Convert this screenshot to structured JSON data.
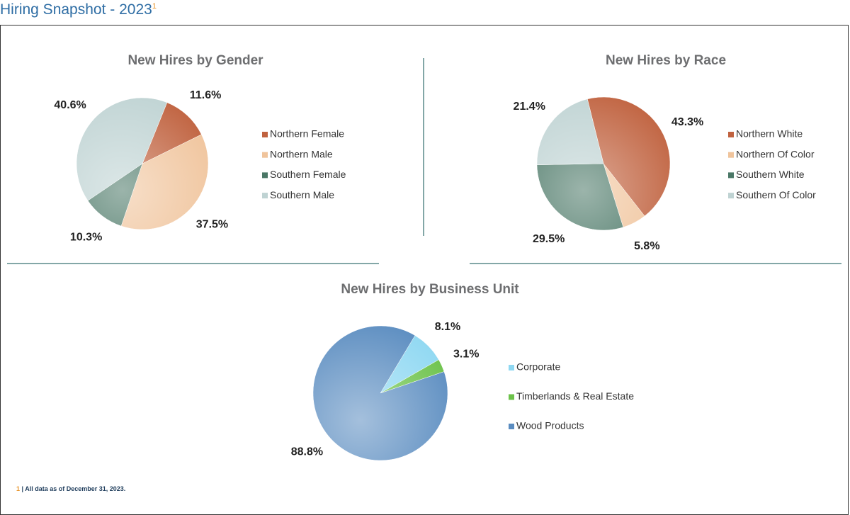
{
  "title": "Hiring Snapshot - 2023",
  "title_note": "1",
  "footnote": {
    "marker": "1",
    "text": "| All data as of December 31, 2023."
  },
  "chart_data": [
    {
      "type": "pie",
      "title": "New Hires by Gender",
      "categories": [
        "Northern Female",
        "Northern Male",
        "Southern Female",
        "Southern Male"
      ],
      "values": [
        11.6,
        37.5,
        10.3,
        40.6
      ],
      "value_labels": [
        "11.6%",
        "37.5%",
        "10.3%",
        "40.6%"
      ],
      "colors": [
        "#c0623f",
        "#f0c49c",
        "#4a7766",
        "#bfd3d3"
      ]
    },
    {
      "type": "pie",
      "title": "New Hires by Race",
      "categories": [
        "Northern White",
        "Northern Of Color",
        "Southern White",
        "Southern Of Color"
      ],
      "values": [
        43.3,
        5.8,
        29.5,
        21.4
      ],
      "value_labels": [
        "43.3%",
        "5.8%",
        "29.5%",
        "21.4%"
      ],
      "colors": [
        "#c0623f",
        "#f0c49c",
        "#4a7766",
        "#bfd3d3"
      ]
    },
    {
      "type": "pie",
      "title": "New Hires by Business Unit",
      "categories": [
        "Corporate",
        "Timberlands & Real Estate",
        "Wood Products"
      ],
      "values": [
        8.1,
        3.1,
        88.8
      ],
      "value_labels": [
        "8.1%",
        "3.1%",
        "88.8%"
      ],
      "colors": [
        "#8fd8f2",
        "#6cc24a",
        "#5a8cc0"
      ]
    }
  ]
}
